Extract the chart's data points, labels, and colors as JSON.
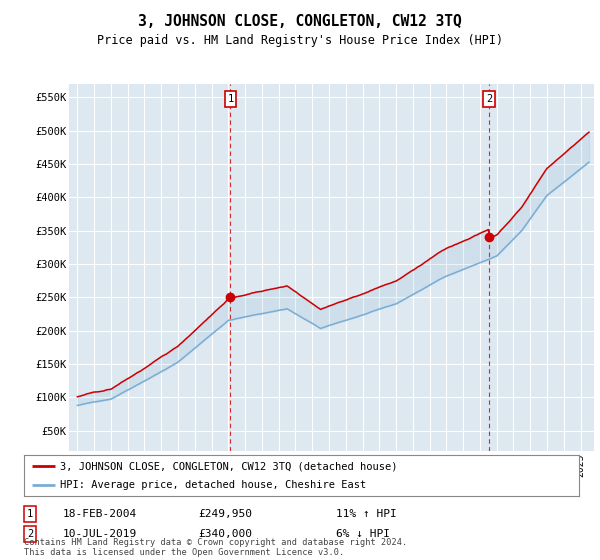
{
  "title": "3, JOHNSON CLOSE, CONGLETON, CW12 3TQ",
  "subtitle": "Price paid vs. HM Land Registry's House Price Index (HPI)",
  "ylabel_ticks": [
    "£50K",
    "£100K",
    "£150K",
    "£200K",
    "£250K",
    "£300K",
    "£350K",
    "£400K",
    "£450K",
    "£500K",
    "£550K"
  ],
  "ytick_vals": [
    50000,
    100000,
    150000,
    200000,
    250000,
    300000,
    350000,
    400000,
    450000,
    500000,
    550000
  ],
  "ylim": [
    20000,
    570000
  ],
  "xlim": [
    1994.5,
    2025.8
  ],
  "legend_line1": "3, JOHNSON CLOSE, CONGLETON, CW12 3TQ (detached house)",
  "legend_line2": "HPI: Average price, detached house, Cheshire East",
  "annotation1": {
    "num": "1",
    "date": "18-FEB-2004",
    "price": "£249,950",
    "pct": "11% ↑ HPI"
  },
  "annotation2": {
    "num": "2",
    "date": "10-JUL-2019",
    "price": "£340,000",
    "pct": "6% ↓ HPI"
  },
  "footer": "Contains HM Land Registry data © Crown copyright and database right 2024.\nThis data is licensed under the Open Government Licence v3.0.",
  "line_color_red": "#cc0000",
  "line_color_blue": "#7aadd4",
  "marker_color": "#cc0000",
  "bg_color": "#dde8f0",
  "grid_color": "#ffffff",
  "title_fontsize": 10.5,
  "subtitle_fontsize": 8.5,
  "tick_fontsize": 7.5
}
